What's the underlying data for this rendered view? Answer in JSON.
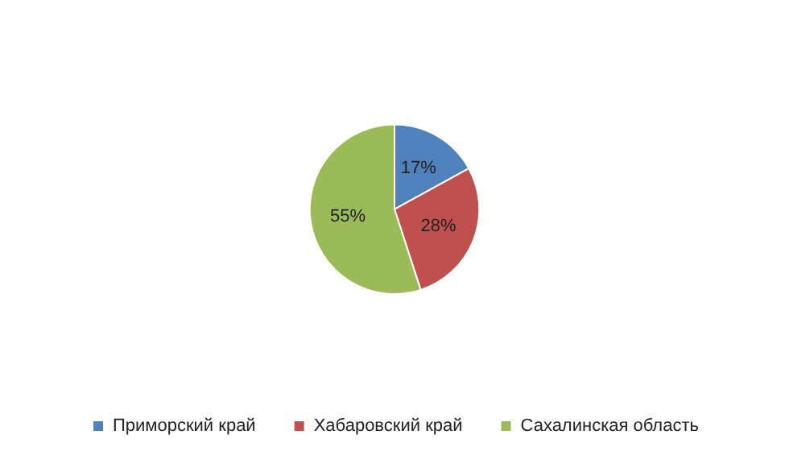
{
  "chart_data": {
    "type": "pie",
    "categories": [
      "Приморский край",
      "Хабаровский край",
      "Сахалинская область"
    ],
    "values": [
      17,
      28,
      55
    ],
    "colors": [
      "#4f81bd",
      "#c0504d",
      "#9bbb59"
    ],
    "value_labels": [
      "17%",
      "28%",
      "55%"
    ],
    "legend": "bottom"
  }
}
